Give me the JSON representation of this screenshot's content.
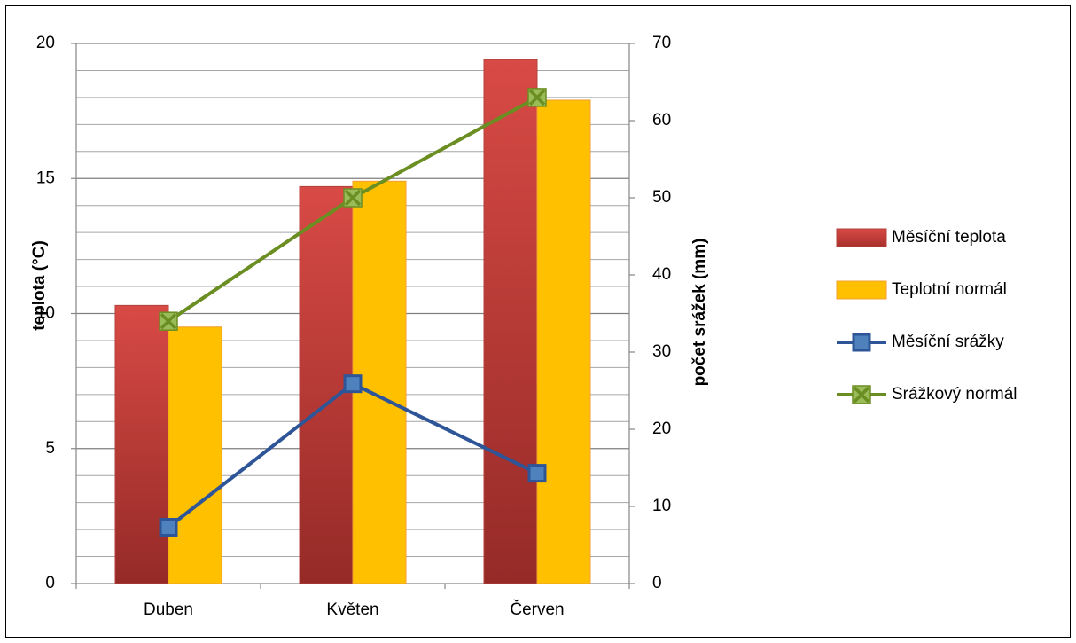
{
  "chart_data": {
    "type": "bar",
    "categories": [
      "Duben",
      "Květen",
      "Červen"
    ],
    "series": [
      {
        "name": "Měsíční teplota",
        "kind": "bar",
        "axis": "left",
        "color": "#c0392b",
        "values": [
          10.3,
          14.7,
          19.4
        ]
      },
      {
        "name": "Teplotní normál",
        "kind": "bar",
        "axis": "left",
        "color": "#ffc000",
        "values": [
          9.5,
          14.9,
          17.9
        ]
      },
      {
        "name": "Měsíční srážky",
        "kind": "line",
        "marker": "square",
        "axis": "right",
        "color": "#2e5597",
        "values": [
          7.3,
          25.9,
          14.3
        ]
      },
      {
        "name": "Srážkový normál",
        "kind": "line",
        "marker": "x",
        "axis": "right",
        "color": "#6b8e23",
        "values": [
          34,
          50,
          63
        ]
      }
    ],
    "ylabel": "teplota (°C)",
    "y2label": "počet srážek (mm)",
    "ylim": [
      0,
      20
    ],
    "y2lim": [
      0,
      70
    ],
    "yticks": [
      "0",
      "5",
      "10",
      "15",
      "20"
    ],
    "y2ticks": [
      "0",
      "10",
      "20",
      "30",
      "40",
      "50",
      "60",
      "70"
    ],
    "grid": true,
    "legend_position": "right"
  }
}
